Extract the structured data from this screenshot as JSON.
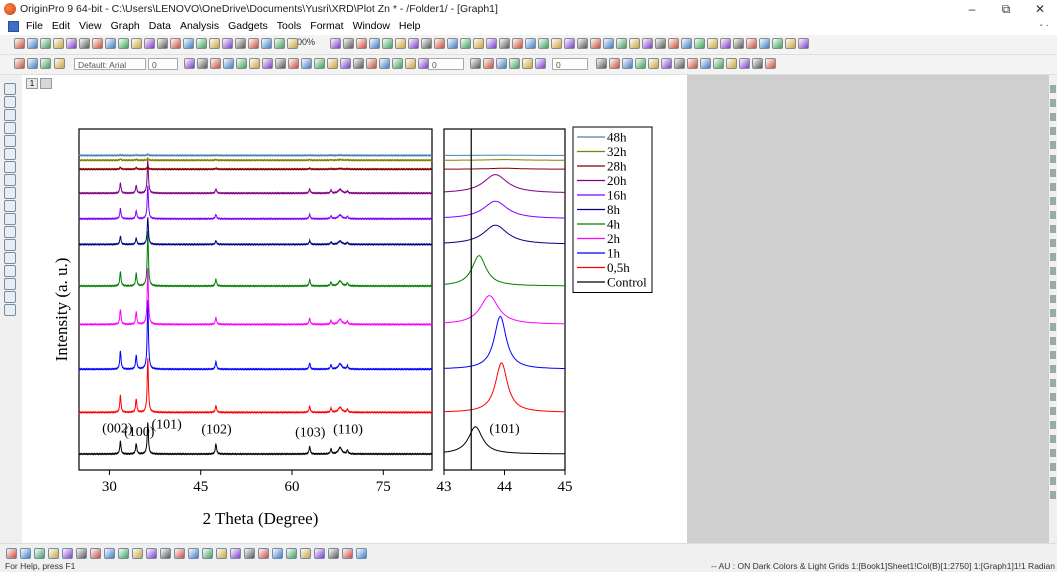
{
  "window": {
    "title": "OriginPro 9 64-bit - C:\\Users\\LENOVO\\OneDrive\\Documents\\Yusri\\XRD\\Plot Zn * - /Folder1/ - [Graph1]",
    "minimize": "–",
    "restore": "⧉",
    "close": "✕"
  },
  "menus": [
    "File",
    "Edit",
    "View",
    "Graph",
    "Data",
    "Analysis",
    "Gadgets",
    "Tools",
    "Format",
    "Window",
    "Help"
  ],
  "mdi_controls": "- ·",
  "toolbar": {
    "zoom": "100%",
    "font_name": "Default: Arial",
    "font_size": "0",
    "line_width": "0",
    "fill_size": "0"
  },
  "layer_tabs": [
    "1",
    ""
  ],
  "status": {
    "left": "For Help, press F1",
    "right": "-- AU : ON  Dark Colors & Light Grids  1:[Book1]Sheet1!Col(B)[1:2750]  1:[Graph1]1!1  Radian"
  },
  "chart_data": [
    {
      "type": "line",
      "panel": "main",
      "xlabel": "2 Theta (Degree)",
      "ylabel": "Intensity (a. u.)",
      "xlim": [
        25,
        83
      ],
      "xticks": [
        30,
        45,
        60,
        75
      ],
      "peaks_2theta": [
        31.8,
        34.4,
        36.3,
        47.5,
        62.9,
        66.4,
        67.9,
        69.1
      ],
      "annotations": [
        {
          "text": "(002)",
          "x": 31.3,
          "y": 0.67
        },
        {
          "text": "(100)",
          "x": 34.9,
          "y": 0.56
        },
        {
          "text": "(101)",
          "x": 39.4,
          "y": 0.8
        },
        {
          "text": "(102)",
          "x": 47.6,
          "y": 0.64
        },
        {
          "text": "(103)",
          "x": 63.0,
          "y": 0.55
        },
        {
          "text": "(110)",
          "x": 69.2,
          "y": 0.64
        }
      ],
      "series": [
        {
          "name": "Control",
          "color": "#000000",
          "offset": 0.0,
          "peaks": [
            0.4,
            0.33,
            1.0,
            0.32,
            0.24,
            0.2
          ]
        },
        {
          "name": "0,5h",
          "color": "#ff0000",
          "offset": 1.3,
          "peaks": [
            0.54,
            0.43,
            1.7,
            0.22,
            0.2,
            0.16
          ]
        },
        {
          "name": "1h",
          "color": "#0000ff",
          "offset": 2.65,
          "peaks": [
            0.58,
            0.45,
            2.15,
            0.24,
            0.2,
            0.17
          ]
        },
        {
          "name": "2h",
          "color": "#ff00ff",
          "offset": 4.05,
          "peaks": [
            0.48,
            0.4,
            1.75,
            0.22,
            0.2,
            0.16
          ]
        },
        {
          "name": "4h",
          "color": "#008000",
          "offset": 5.25,
          "peaks": [
            0.46,
            0.4,
            1.7,
            0.22,
            0.2,
            0.16
          ]
        },
        {
          "name": "8h",
          "color": "#000080",
          "offset": 6.55,
          "peaks": [
            0.26,
            0.2,
            0.85,
            0.12,
            0.12,
            0.1
          ]
        },
        {
          "name": "16h",
          "color": "#8000ff",
          "offset": 7.35,
          "peaks": [
            0.32,
            0.25,
            1.05,
            0.14,
            0.14,
            0.12
          ]
        },
        {
          "name": "20h",
          "color": "#800080",
          "offset": 8.15,
          "peaks": [
            0.32,
            0.25,
            1.05,
            0.14,
            0.14,
            0.12
          ]
        },
        {
          "name": "28h",
          "color": "#800000",
          "offset": 8.9,
          "peaks": [
            0.06,
            0.05,
            0.1,
            0.03,
            0.03,
            0.02
          ]
        },
        {
          "name": "32h",
          "color": "#808000",
          "offset": 9.18,
          "peaks": [
            0.04,
            0.03,
            0.06,
            0.02,
            0.02,
            0.02
          ]
        },
        {
          "name": "48h",
          "color": "#4682b4",
          "offset": 9.33,
          "peaks": [
            0.02,
            0.02,
            0.04,
            0.01,
            0.01,
            0.01
          ]
        }
      ]
    },
    {
      "type": "line",
      "panel": "zoom",
      "xlim": [
        43,
        45
      ],
      "xticks": [
        43,
        44,
        45
      ],
      "reference_line_x": 43.45,
      "annotations": [
        {
          "text": "(101)",
          "x": 44.0,
          "y": 0.65
        }
      ],
      "series": [
        {
          "name": "Control",
          "color": "#000000",
          "offset": 0.0,
          "center": 43.52,
          "height": 0.85,
          "width": 0.14
        },
        {
          "name": "0,5h",
          "color": "#ff0000",
          "offset": 1.3,
          "center": 43.95,
          "height": 1.55,
          "width": 0.12
        },
        {
          "name": "1h",
          "color": "#0000ff",
          "offset": 2.65,
          "center": 43.93,
          "height": 1.65,
          "width": 0.12
        },
        {
          "name": "2h",
          "color": "#ff00ff",
          "offset": 4.05,
          "center": 43.75,
          "height": 0.9,
          "width": 0.18
        },
        {
          "name": "4h",
          "color": "#008000",
          "offset": 5.25,
          "center": 43.58,
          "height": 0.95,
          "width": 0.14
        },
        {
          "name": "8h",
          "color": "#000080",
          "offset": 6.55,
          "center": 43.85,
          "height": 0.6,
          "width": 0.24
        },
        {
          "name": "16h",
          "color": "#8000ff",
          "offset": 7.35,
          "center": 43.85,
          "height": 0.55,
          "width": 0.24
        },
        {
          "name": "20h",
          "color": "#800080",
          "offset": 8.15,
          "center": 43.85,
          "height": 0.58,
          "width": 0.24
        },
        {
          "name": "28h",
          "color": "#800000",
          "offset": 8.9,
          "center": 44.0,
          "height": 0.03,
          "width": 0.3
        },
        {
          "name": "32h",
          "color": "#808000",
          "offset": 9.18,
          "center": 44.0,
          "height": 0.02,
          "width": 0.3
        },
        {
          "name": "48h",
          "color": "#4682b4",
          "offset": 9.33,
          "center": 44.0,
          "height": 0.01,
          "width": 0.3
        }
      ]
    }
  ],
  "legend": {
    "placement": "right",
    "entries": [
      "48h",
      "32h",
      "28h",
      "20h",
      "16h",
      "8h",
      "4h",
      "2h",
      "1h",
      "0,5h",
      "Control"
    ]
  }
}
